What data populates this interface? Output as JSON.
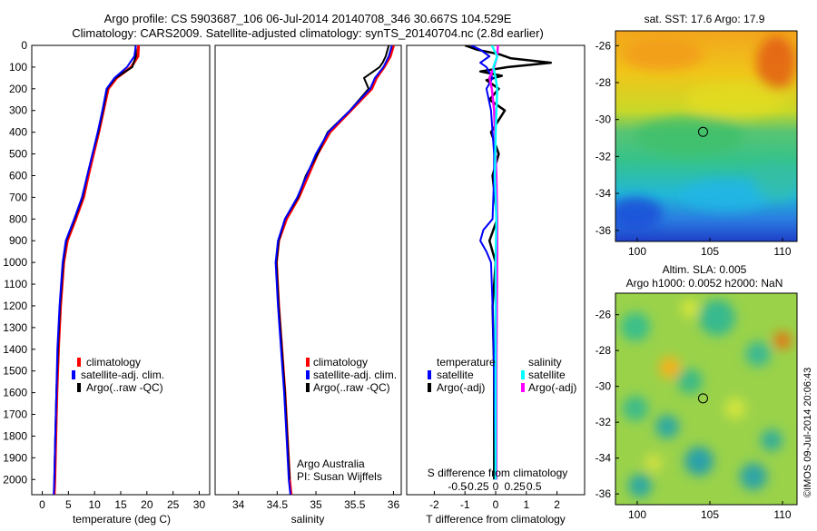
{
  "header": {
    "line1": "Argo profile: CS 5903687_106 06-Jul-2014 20140708_346 30.667S 104.529E",
    "line2": "Climatology: CARS2009. Satellite-adjusted climatology: synTS_20140704.nc (2.8d earlier)"
  },
  "colors": {
    "climatology": "#ff0000",
    "satellite": "#0000ff",
    "argo": "#000000",
    "sal_satellite": "#00ffff",
    "sal_argo": "#ff00ff"
  },
  "depth_ticks": [
    "0",
    "100",
    "200",
    "300",
    "400",
    "500",
    "600",
    "700",
    "800",
    "900",
    "1000",
    "1100",
    "1200",
    "1300",
    "1400",
    "1500",
    "1600",
    "1700",
    "1800",
    "1900",
    "2000"
  ],
  "chart_data": [
    {
      "type": "line",
      "id": "temperature",
      "xlabel": "temperature (deg C)",
      "ylabel": "depth",
      "xlim": [
        -2,
        32
      ],
      "ylim": [
        2070,
        0
      ],
      "xticks": [
        "0",
        "5",
        "10",
        "15",
        "20",
        "25",
        "30"
      ],
      "legend": [
        "climatology",
        "satellite-adj. clim.",
        "Argo(..raw -QC)"
      ],
      "series": [
        {
          "name": "climatology",
          "depth": [
            0,
            50,
            100,
            150,
            200,
            300,
            400,
            500,
            600,
            700,
            800,
            900,
            1000,
            1200,
            1400,
            1600,
            1800,
            2000,
            2070
          ],
          "values": [
            18.4,
            18.3,
            17.0,
            14.2,
            12.6,
            11.7,
            10.8,
            9.8,
            8.8,
            7.9,
            6.4,
            4.8,
            4.1,
            3.5,
            3.1,
            2.8,
            2.6,
            2.4,
            2.3
          ]
        },
        {
          "name": "satellite-adj. clim.",
          "depth": [
            0,
            50,
            100,
            150,
            200,
            300,
            400,
            500,
            600,
            700,
            800,
            900,
            1000,
            1200,
            1400,
            1600,
            1800,
            2000,
            2070
          ],
          "values": [
            17.9,
            17.6,
            16.2,
            13.8,
            12.3,
            11.5,
            10.6,
            9.6,
            8.6,
            7.6,
            6.1,
            4.5,
            3.9,
            3.3,
            2.9,
            2.7,
            2.5,
            2.3,
            2.2
          ]
        },
        {
          "name": "Argo(..raw -QC)",
          "depth": [
            0,
            20,
            50,
            100,
            150,
            200,
            300,
            400,
            500,
            600,
            700,
            800,
            900,
            1000,
            1200,
            1400,
            1600,
            1800,
            2000
          ],
          "values": [
            17.8,
            17.9,
            17.9,
            17.2,
            14.0,
            12.4,
            11.6,
            10.7,
            9.6,
            8.6,
            7.7,
            6.2,
            4.6,
            4.0,
            3.4,
            3.0,
            2.7,
            2.5,
            2.3
          ]
        }
      ]
    },
    {
      "type": "line",
      "id": "salinity",
      "xlabel": "salinity",
      "ylabel": "depth",
      "xlim": [
        33.7,
        36.1
      ],
      "ylim": [
        2070,
        0
      ],
      "xticks": [
        "34",
        "34.5",
        "35",
        "35.5",
        "36"
      ],
      "legend": [
        "climatology",
        "satellite-adj. clim.",
        "Argo(..raw -QC)"
      ],
      "annotation": [
        "Argo Australia",
        "PI: Susan Wijffels"
      ],
      "series": [
        {
          "name": "climatology",
          "depth": [
            0,
            50,
            100,
            150,
            200,
            300,
            400,
            500,
            600,
            700,
            800,
            900,
            1000,
            1200,
            1400,
            1600,
            1800,
            2000,
            2070
          ],
          "values": [
            36.0,
            35.96,
            35.88,
            35.78,
            35.72,
            35.45,
            35.18,
            35.02,
            34.9,
            34.78,
            34.62,
            34.52,
            34.49,
            34.52,
            34.56,
            34.6,
            34.63,
            34.66,
            34.68
          ]
        },
        {
          "name": "satellite-adj. clim.",
          "depth": [
            0,
            50,
            100,
            150,
            200,
            300,
            400,
            500,
            600,
            700,
            800,
            900,
            1000,
            1200,
            1400,
            1600,
            1800,
            2000,
            2070
          ],
          "values": [
            35.98,
            35.94,
            35.87,
            35.76,
            35.7,
            35.44,
            35.16,
            35.0,
            34.88,
            34.76,
            34.6,
            34.51,
            34.48,
            34.51,
            34.55,
            34.59,
            34.62,
            34.65,
            34.67
          ]
        },
        {
          "name": "Argo(..raw -QC)",
          "depth": [
            0,
            50,
            80,
            100,
            150,
            200,
            300,
            400,
            500,
            600,
            700,
            800,
            900,
            1000,
            1200,
            1400,
            1600,
            1800,
            2000
          ],
          "values": [
            35.94,
            35.9,
            35.86,
            35.82,
            35.62,
            35.68,
            35.44,
            35.15,
            35.02,
            34.87,
            34.77,
            34.6,
            34.52,
            34.49,
            34.52,
            34.56,
            34.6,
            34.63,
            34.66
          ]
        }
      ]
    },
    {
      "type": "line",
      "id": "difference",
      "xlabel": "T difference from climatology",
      "xlabel_top": "S difference from climatology",
      "ylabel": "depth",
      "xlim": [
        -2.9,
        2.9
      ],
      "ylim": [
        2070,
        0
      ],
      "xticks_T": [
        "-2",
        "-1",
        "0",
        "1",
        "2"
      ],
      "xticks_S": [
        "-0.5",
        "-0.25",
        "0",
        "0.25",
        "0.5"
      ],
      "legend_titles": [
        "temperature",
        "salinity"
      ],
      "legend": [
        "satellite",
        "Argo(-adj)",
        "satellite",
        "Argo(-adj)"
      ],
      "series": [
        {
          "name": "temperature satellite",
          "depth": [
            0,
            20,
            50,
            80,
            100,
            150,
            200,
            300,
            400,
            500,
            600,
            800,
            850,
            900,
            950,
            1000,
            1200,
            1500,
            2000
          ],
          "values": [
            -0.8,
            -0.5,
            -0.2,
            -0.5,
            -0.3,
            -0.1,
            -0.3,
            -0.15,
            -0.1,
            -0.05,
            -0.05,
            -0.1,
            -0.4,
            -0.5,
            -0.3,
            -0.15,
            -0.1,
            -0.05,
            0
          ]
        },
        {
          "name": "temperature Argo(-adj)",
          "depth": [
            0,
            20,
            40,
            60,
            80,
            100,
            120,
            140,
            160,
            200,
            250,
            300,
            400,
            500,
            600,
            800,
            900,
            1000,
            1200,
            1500,
            2000
          ],
          "values": [
            -1.0,
            -0.6,
            0.1,
            0.5,
            1.8,
            0.4,
            -0.5,
            0.2,
            -0.3,
            0.1,
            -0.2,
            0.3,
            -0.15,
            0.1,
            -0.1,
            0.05,
            -0.2,
            0.0,
            -0.1,
            -0.05,
            -0.05
          ]
        },
        {
          "name": "salinity satellite",
          "depth": [
            0,
            50,
            100,
            150,
            200,
            400,
            600,
            800,
            1000,
            1500,
            2000
          ],
          "values": [
            -0.05,
            0.02,
            -0.03,
            0.0,
            0.02,
            0.0,
            -0.01,
            0.01,
            0.0,
            0.0,
            0.0
          ]
        },
        {
          "name": "salinity Argo(-adj)",
          "depth": [
            0,
            50,
            100,
            150,
            200,
            300,
            400,
            500,
            600,
            800,
            1000,
            1500,
            2000
          ],
          "values": [
            0.03,
            0.02,
            -0.02,
            -0.08,
            -0.05,
            -0.02,
            -0.01,
            0.0,
            0.01,
            0.02,
            0.02,
            0.01,
            0.01
          ]
        }
      ]
    },
    {
      "type": "heatmap",
      "id": "sst_map",
      "title": "sat. SST: 17.6 Argo: 17.9",
      "xlim": [
        98.5,
        111
      ],
      "ylim": [
        -36.6,
        -25.2
      ],
      "xticks": [
        "100",
        "105",
        "110"
      ],
      "yticks": [
        "-26",
        "-28",
        "-30",
        "-32",
        "-34",
        "-36"
      ],
      "marker": {
        "lon": 104.529,
        "lat": -30.667
      }
    },
    {
      "type": "heatmap",
      "id": "sla_map",
      "title_line1": "Altim. SLA: 0.005",
      "title_line2": "Argo h1000: 0.0052 h2000: NaN",
      "xlim": [
        98.5,
        111
      ],
      "ylim": [
        -36.6,
        -24.8
      ],
      "xticks": [
        "100",
        "105",
        "110"
      ],
      "yticks": [
        "-26",
        "-28",
        "-30",
        "-32",
        "-34",
        "-36"
      ],
      "marker": {
        "lon": 104.529,
        "lat": -30.667
      }
    }
  ],
  "side_label": "©IMOS 09-Jul-2014 20:06:43"
}
